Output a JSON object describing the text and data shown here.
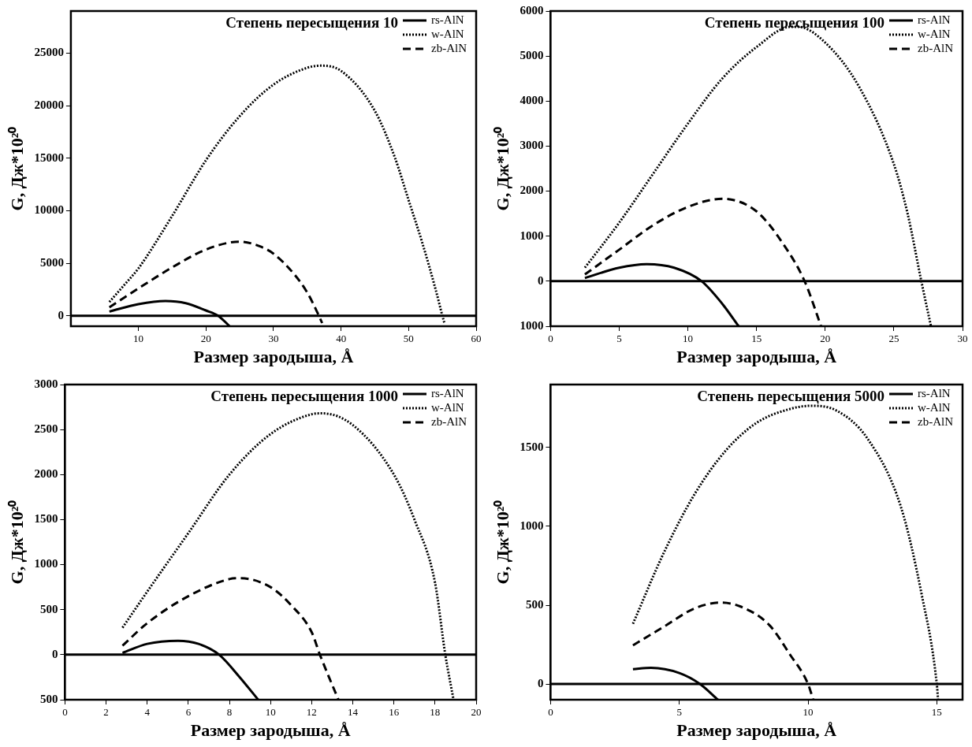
{
  "chart_data": [
    {
      "type": "line",
      "title": "Степень пересыщения 10",
      "xlabel": "Размер зародыша, Å",
      "ylabel": "G, Дж*10²⁰",
      "xlim": [
        0,
        60
      ],
      "xticks": [
        10,
        20,
        30,
        40,
        50,
        60
      ],
      "ylim": [
        -1000,
        29000
      ],
      "yticks": [
        0,
        5000,
        10000,
        15000,
        20000,
        25000
      ],
      "grid": false,
      "legend": "top right",
      "marker": "none",
      "ref_lines": [
        {
          "axis": "y",
          "value": 0,
          "color": "#000000"
        }
      ],
      "series": [
        {
          "name": "rs-AlN",
          "color": "#000000",
          "line_style": "solid",
          "x": [
            5.7,
            10,
            14,
            17,
            20,
            21.8,
            23.5
          ],
          "values": [
            400,
            1100,
            1400,
            1200,
            500,
            0,
            -1000
          ]
        },
        {
          "name": "w-AlN",
          "color": "#000000",
          "line_style": "dotted",
          "x": [
            5.7,
            8,
            10,
            15,
            20,
            25,
            30,
            35,
            37,
            40,
            45,
            48,
            50,
            52,
            54,
            55,
            55.3
          ],
          "values": [
            1300,
            3000,
            4500,
            9500,
            14800,
            19000,
            22000,
            23600,
            23800,
            23300,
            19500,
            15000,
            11000,
            7000,
            2500,
            0,
            -700
          ]
        },
        {
          "name": "zb-AlN",
          "color": "#000000",
          "line_style": "dashed",
          "x": [
            5.7,
            10,
            15,
            20,
            25,
            28,
            30,
            33,
            35,
            36.5,
            37.2
          ],
          "values": [
            800,
            2600,
            4600,
            6300,
            7050,
            6600,
            5900,
            4000,
            2200,
            300,
            -700
          ]
        }
      ]
    },
    {
      "type": "line",
      "title": "Степень пересыщения 100",
      "xlabel": "Размер зародыша, Å",
      "ylabel": "G, Дж*10²⁰",
      "xlim": [
        0,
        30
      ],
      "xticks": [
        0,
        5,
        10,
        15,
        20,
        25,
        30
      ],
      "ylim": [
        -1000,
        6000
      ],
      "yticks": [
        {
          "value": -1000,
          "label": "1000"
        },
        0,
        1000,
        2000,
        3000,
        4000,
        5000,
        6000
      ],
      "grid": false,
      "legend": "top right",
      "marker": "none",
      "ref_lines": [
        {
          "axis": "y",
          "value": 0,
          "color": "#000000"
        }
      ],
      "series": [
        {
          "name": "rs-AlN",
          "color": "#000000",
          "line_style": "solid",
          "x": [
            2.5,
            5,
            7,
            9,
            11,
            12.5,
            13.7
          ],
          "values": [
            70,
            300,
            380,
            300,
            0,
            -500,
            -1000
          ]
        },
        {
          "name": "w-AlN",
          "color": "#000000",
          "line_style": "dotted",
          "x": [
            2.5,
            5,
            7.5,
            10,
            12.5,
            15,
            17.5,
            18,
            20,
            22.5,
            25,
            26,
            27,
            27.7
          ],
          "values": [
            300,
            1300,
            2400,
            3500,
            4500,
            5200,
            5650,
            5650,
            5300,
            4300,
            2600,
            1500,
            0,
            -1000
          ]
        },
        {
          "name": "zb-AlN",
          "color": "#000000",
          "line_style": "dashed",
          "x": [
            2.5,
            5,
            7.5,
            10,
            12.5,
            15,
            17,
            18.5,
            19.7
          ],
          "values": [
            150,
            700,
            1250,
            1650,
            1830,
            1550,
            800,
            0,
            -1000
          ]
        }
      ]
    },
    {
      "type": "line",
      "title": "Степень пересыщения 1000",
      "xlabel": "Размер зародыша, Å",
      "ylabel": "G, Дж*10²⁰",
      "xlim": [
        0,
        20
      ],
      "xticks": [
        0,
        2,
        4,
        6,
        8,
        10,
        12,
        14,
        16,
        18,
        20
      ],
      "ylim": [
        -500,
        3000
      ],
      "yticks": [
        {
          "value": -500,
          "label": "500"
        },
        0,
        500,
        1000,
        1500,
        2000,
        2500,
        3000
      ],
      "grid": false,
      "legend": "top right",
      "marker": "none",
      "ref_lines": [
        {
          "axis": "y",
          "value": 0,
          "color": "#000000"
        }
      ],
      "series": [
        {
          "name": "rs-AlN",
          "color": "#000000",
          "line_style": "solid",
          "x": [
            2.8,
            4,
            5.5,
            6.5,
            7.5,
            8.5,
            9.4
          ],
          "values": [
            20,
            120,
            155,
            120,
            0,
            -250,
            -500
          ]
        },
        {
          "name": "w-AlN",
          "color": "#000000",
          "line_style": "dotted",
          "x": [
            2.8,
            4,
            6,
            8,
            10,
            12,
            12.5,
            14,
            16,
            17,
            18,
            18.5,
            18.9
          ],
          "values": [
            300,
            700,
            1350,
            2000,
            2450,
            2670,
            2680,
            2550,
            2000,
            1500,
            800,
            0,
            -500
          ]
        },
        {
          "name": "zb-AlN",
          "color": "#000000",
          "line_style": "dashed",
          "x": [
            2.8,
            4,
            6,
            8,
            8.5,
            10,
            11,
            12,
            12.4,
            13.3
          ],
          "values": [
            100,
            350,
            650,
            840,
            850,
            750,
            550,
            250,
            0,
            -500
          ]
        }
      ]
    },
    {
      "type": "line",
      "title": "Степень пересыщения 5000",
      "xlabel": "Размер зародыша, Å",
      "ylabel": "G, Дж*10²⁰",
      "xlim": [
        0,
        16
      ],
      "xticks": [
        0,
        5,
        10,
        15
      ],
      "ylim": [
        -100,
        1900
      ],
      "yticks": [
        0,
        500,
        1000,
        1500
      ],
      "grid": false,
      "legend": "top right",
      "marker": "none",
      "ref_lines": [
        {
          "axis": "y",
          "value": 0,
          "color": "#000000"
        }
      ],
      "series": [
        {
          "name": "rs-AlN",
          "color": "#000000",
          "line_style": "solid",
          "x": [
            3.2,
            3.9,
            5,
            5.8,
            6.5
          ],
          "values": [
            94,
            102,
            69,
            0,
            -100
          ]
        },
        {
          "name": "w-AlN",
          "color": "#000000",
          "line_style": "dotted",
          "x": [
            3.2,
            4.4,
            5.6,
            6.8,
            8,
            9.3,
            10.1,
            11.1,
            12.3,
            13.6,
            14.4,
            15,
            15.05
          ],
          "values": [
            382,
            833,
            1206,
            1480,
            1657,
            1745,
            1765,
            1735,
            1559,
            1127,
            578,
            0,
            -100
          ]
        },
        {
          "name": "zb-AlN",
          "color": "#000000",
          "line_style": "dashed",
          "x": [
            3.2,
            4.4,
            5.6,
            6.6,
            7.4,
            8.5,
            9.3,
            10,
            10.2
          ],
          "values": [
            245,
            363,
            480,
            516,
            490,
            373,
            186,
            0,
            -100
          ]
        }
      ]
    }
  ]
}
